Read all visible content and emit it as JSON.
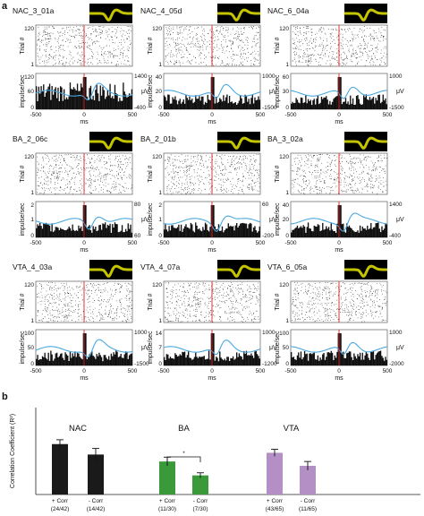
{
  "panel_a": {
    "letter": "a",
    "units": [
      {
        "name": "NAC_3_01a",
        "rate_max": "120",
        "rate_mid": "60",
        "uv_max": "1400",
        "uv_min": "-400"
      },
      {
        "name": "NAC_4_05d",
        "rate_max": "40",
        "rate_mid": "20",
        "uv_max": "1000",
        "uv_min": "-1500"
      },
      {
        "name": "NAC_6_04a",
        "rate_max": "60",
        "rate_mid": "30",
        "uv_max": "1000",
        "uv_min": "-1500"
      },
      {
        "name": "BA_2_06c",
        "rate_max": "2",
        "rate_mid": "1",
        "uv_max": "80",
        "uv_min": "60"
      },
      {
        "name": "BA_2_01b",
        "rate_max": "2",
        "rate_mid": "1",
        "uv_max": "60",
        "uv_min": "-200"
      },
      {
        "name": "BA_3_02a",
        "rate_max": "40",
        "rate_mid": "20",
        "uv_max": "1400",
        "uv_min": "-400"
      },
      {
        "name": "VTA_4_03a",
        "rate_max": "100",
        "rate_mid": "50",
        "uv_max": "1000",
        "uv_min": "-1500"
      },
      {
        "name": "VTA_4_07a",
        "rate_max": "14",
        "rate_mid": "7",
        "uv_max": "1000",
        "uv_min": "-1200"
      },
      {
        "name": "VTA_6_05a",
        "rate_max": "100",
        "rate_mid": "50",
        "uv_max": "1000",
        "uv_min": "-2000"
      }
    ],
    "raster_ytick_top": "120",
    "raster_ytick_bottom": "1",
    "raster_ylabel": "Trial #",
    "psth_ylabel": "impulse/sec",
    "uv_label": "μV",
    "xticks": [
      "-500",
      "0",
      "500"
    ],
    "xlabel": "ms",
    "zero_tick": "0"
  },
  "panel_b": {
    "letter": "b",
    "chart_data": {
      "type": "bar",
      "ylabel": "Correlation Coefficient (R²)",
      "groups": [
        "NAC",
        "BA",
        "VTA"
      ],
      "categories": [
        "+ Corr",
        "- Corr",
        "+ Corr",
        "- Corr",
        "+ Corr",
        "- Corr"
      ],
      "counts": [
        "(24/42)",
        "(14/42)",
        "(11/30)",
        "(7/30)",
        "(43/65)",
        "(11/65)"
      ],
      "values": [
        0.58,
        0.46,
        0.38,
        0.22,
        0.48,
        0.33
      ],
      "errors": [
        0.05,
        0.07,
        0.05,
        0.03,
        0.04,
        0.05
      ],
      "colors": [
        "#1a1a1a",
        "#1a1a1a",
        "#3a9a3a",
        "#3a9a3a",
        "#b38fc6",
        "#b38fc6"
      ],
      "ylim": [
        0,
        1
      ],
      "significance_marker": "*"
    }
  }
}
